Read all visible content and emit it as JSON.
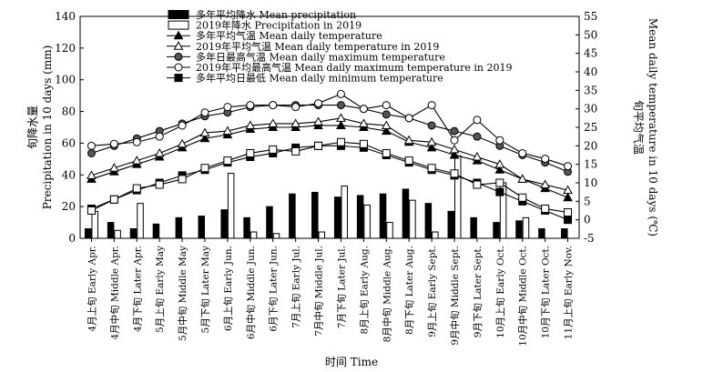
{
  "chart_data": {
    "type": "bar",
    "xlabel": "时间 Time",
    "ylabel_left_cn": "旬降水量",
    "ylabel_left_en": "Precipitation in 10 days (mm)",
    "ylabel_right_cn": "旬平均气温",
    "ylabel_right_en": "Mean daily temperature in 10 days (℃)",
    "ylim_left": [
      0,
      140
    ],
    "yticks_left": [
      0,
      20,
      40,
      60,
      80,
      100,
      120,
      140
    ],
    "ylim_right": [
      -5,
      55
    ],
    "yticks_right": [
      -5,
      0,
      5,
      10,
      15,
      20,
      25,
      30,
      35,
      40,
      45,
      50,
      55
    ],
    "categories": [
      "4月上旬 Early Apr.",
      "4月中旬 Middle Apr.",
      "4月下旬 Later Apr.",
      "5月上旬 Early May",
      "5月中旬 Middle May",
      "5月下旬 Later May",
      "6月上旬 Early Jun.",
      "6月中旬 Middle Jun.",
      "6月下旬 Later Jun.",
      "7月上旬 Early Jul.",
      "7月中旬 Middle Jul.",
      "7月下旬 Later Jul.",
      "8月上旬 Early Aug.",
      "8月中旬 Middle Aug.",
      "8月下旬 Later Aug.",
      "9月上旬 Early Sept.",
      "9月中旬 Middle Sept.",
      "9月下旬 Later Sept.",
      "10月上旬 Early Oct.",
      "10月中旬 Middle Oct.",
      "10月下旬 Later Oct.",
      "11月上旬 Early Nov."
    ],
    "bar_series": [
      {
        "name": "多年平均降水 Mean precipitation",
        "style": "solid",
        "values": [
          6,
          10,
          6,
          9,
          13,
          14,
          18,
          13,
          20,
          28,
          29,
          26,
          27,
          28,
          31,
          22,
          17,
          13,
          10,
          11,
          6,
          6
        ]
      },
      {
        "name": "2019年降水 Precipitation in 2019",
        "style": "hollow",
        "values": [
          17,
          5,
          22,
          0,
          0,
          0,
          41,
          4,
          3,
          0,
          4,
          33,
          21,
          10,
          24,
          4,
          52,
          0,
          35,
          13,
          0,
          0
        ]
      }
    ],
    "line_series": [
      {
        "name": "多年平均气温 Mean daily temperature",
        "marker": "triangle-filled",
        "values": [
          11,
          13,
          15,
          17,
          19.5,
          22,
          23,
          24.5,
          25,
          25,
          25.5,
          25.5,
          25,
          24,
          21,
          19.5,
          17.5,
          16,
          13.5,
          11,
          8.5,
          6
        ]
      },
      {
        "name": "2019年平均气温 Mean daily temperature in 2019",
        "marker": "triangle-hollow",
        "values": [
          12,
          14,
          16,
          18,
          20.5,
          23.5,
          24,
          25.5,
          26,
          26,
          26.5,
          27.5,
          26,
          25.5,
          21.5,
          21,
          19,
          17,
          15,
          11,
          9.5,
          8
        ]
      },
      {
        "name": "多年日最高气温 Mean daily maximum temperature",
        "marker": "circle-filled",
        "values": [
          18,
          20,
          22,
          24,
          26,
          28,
          29,
          30.5,
          31,
          31,
          31,
          31,
          30,
          28.5,
          27.5,
          25.5,
          24,
          22.5,
          20,
          17.5,
          15.5,
          13
        ]
      },
      {
        "name": "2019年平均最高气温 Mean daily maximum temperature in 2019",
        "marker": "circle-hollow",
        "values": [
          20,
          20.5,
          21,
          22.5,
          25.5,
          29,
          30.5,
          31,
          31,
          30.5,
          31.5,
          34,
          30,
          31,
          27.5,
          31,
          21.5,
          27,
          21.5,
          18,
          16.5,
          14.5
        ]
      },
      {
        "name": "多年平均日最低 Mean daily minimum temperature",
        "marker": "square-filled",
        "values": [
          3,
          5.5,
          8,
          10,
          12,
          13.5,
          15.5,
          17,
          18,
          19.5,
          20,
          20,
          19.5,
          17.5,
          15.5,
          13.5,
          12,
          10,
          7.5,
          5,
          2.5,
          0
        ]
      },
      {
        "name": "",
        "marker": "square-hollow",
        "values": [
          2.5,
          5.5,
          8.5,
          9.5,
          11,
          14,
          16,
          18,
          19,
          18.5,
          20,
          21,
          20.5,
          18,
          16,
          14,
          12.5,
          9.5,
          10,
          6,
          3,
          2
        ]
      }
    ],
    "legend_position": "top-left"
  }
}
